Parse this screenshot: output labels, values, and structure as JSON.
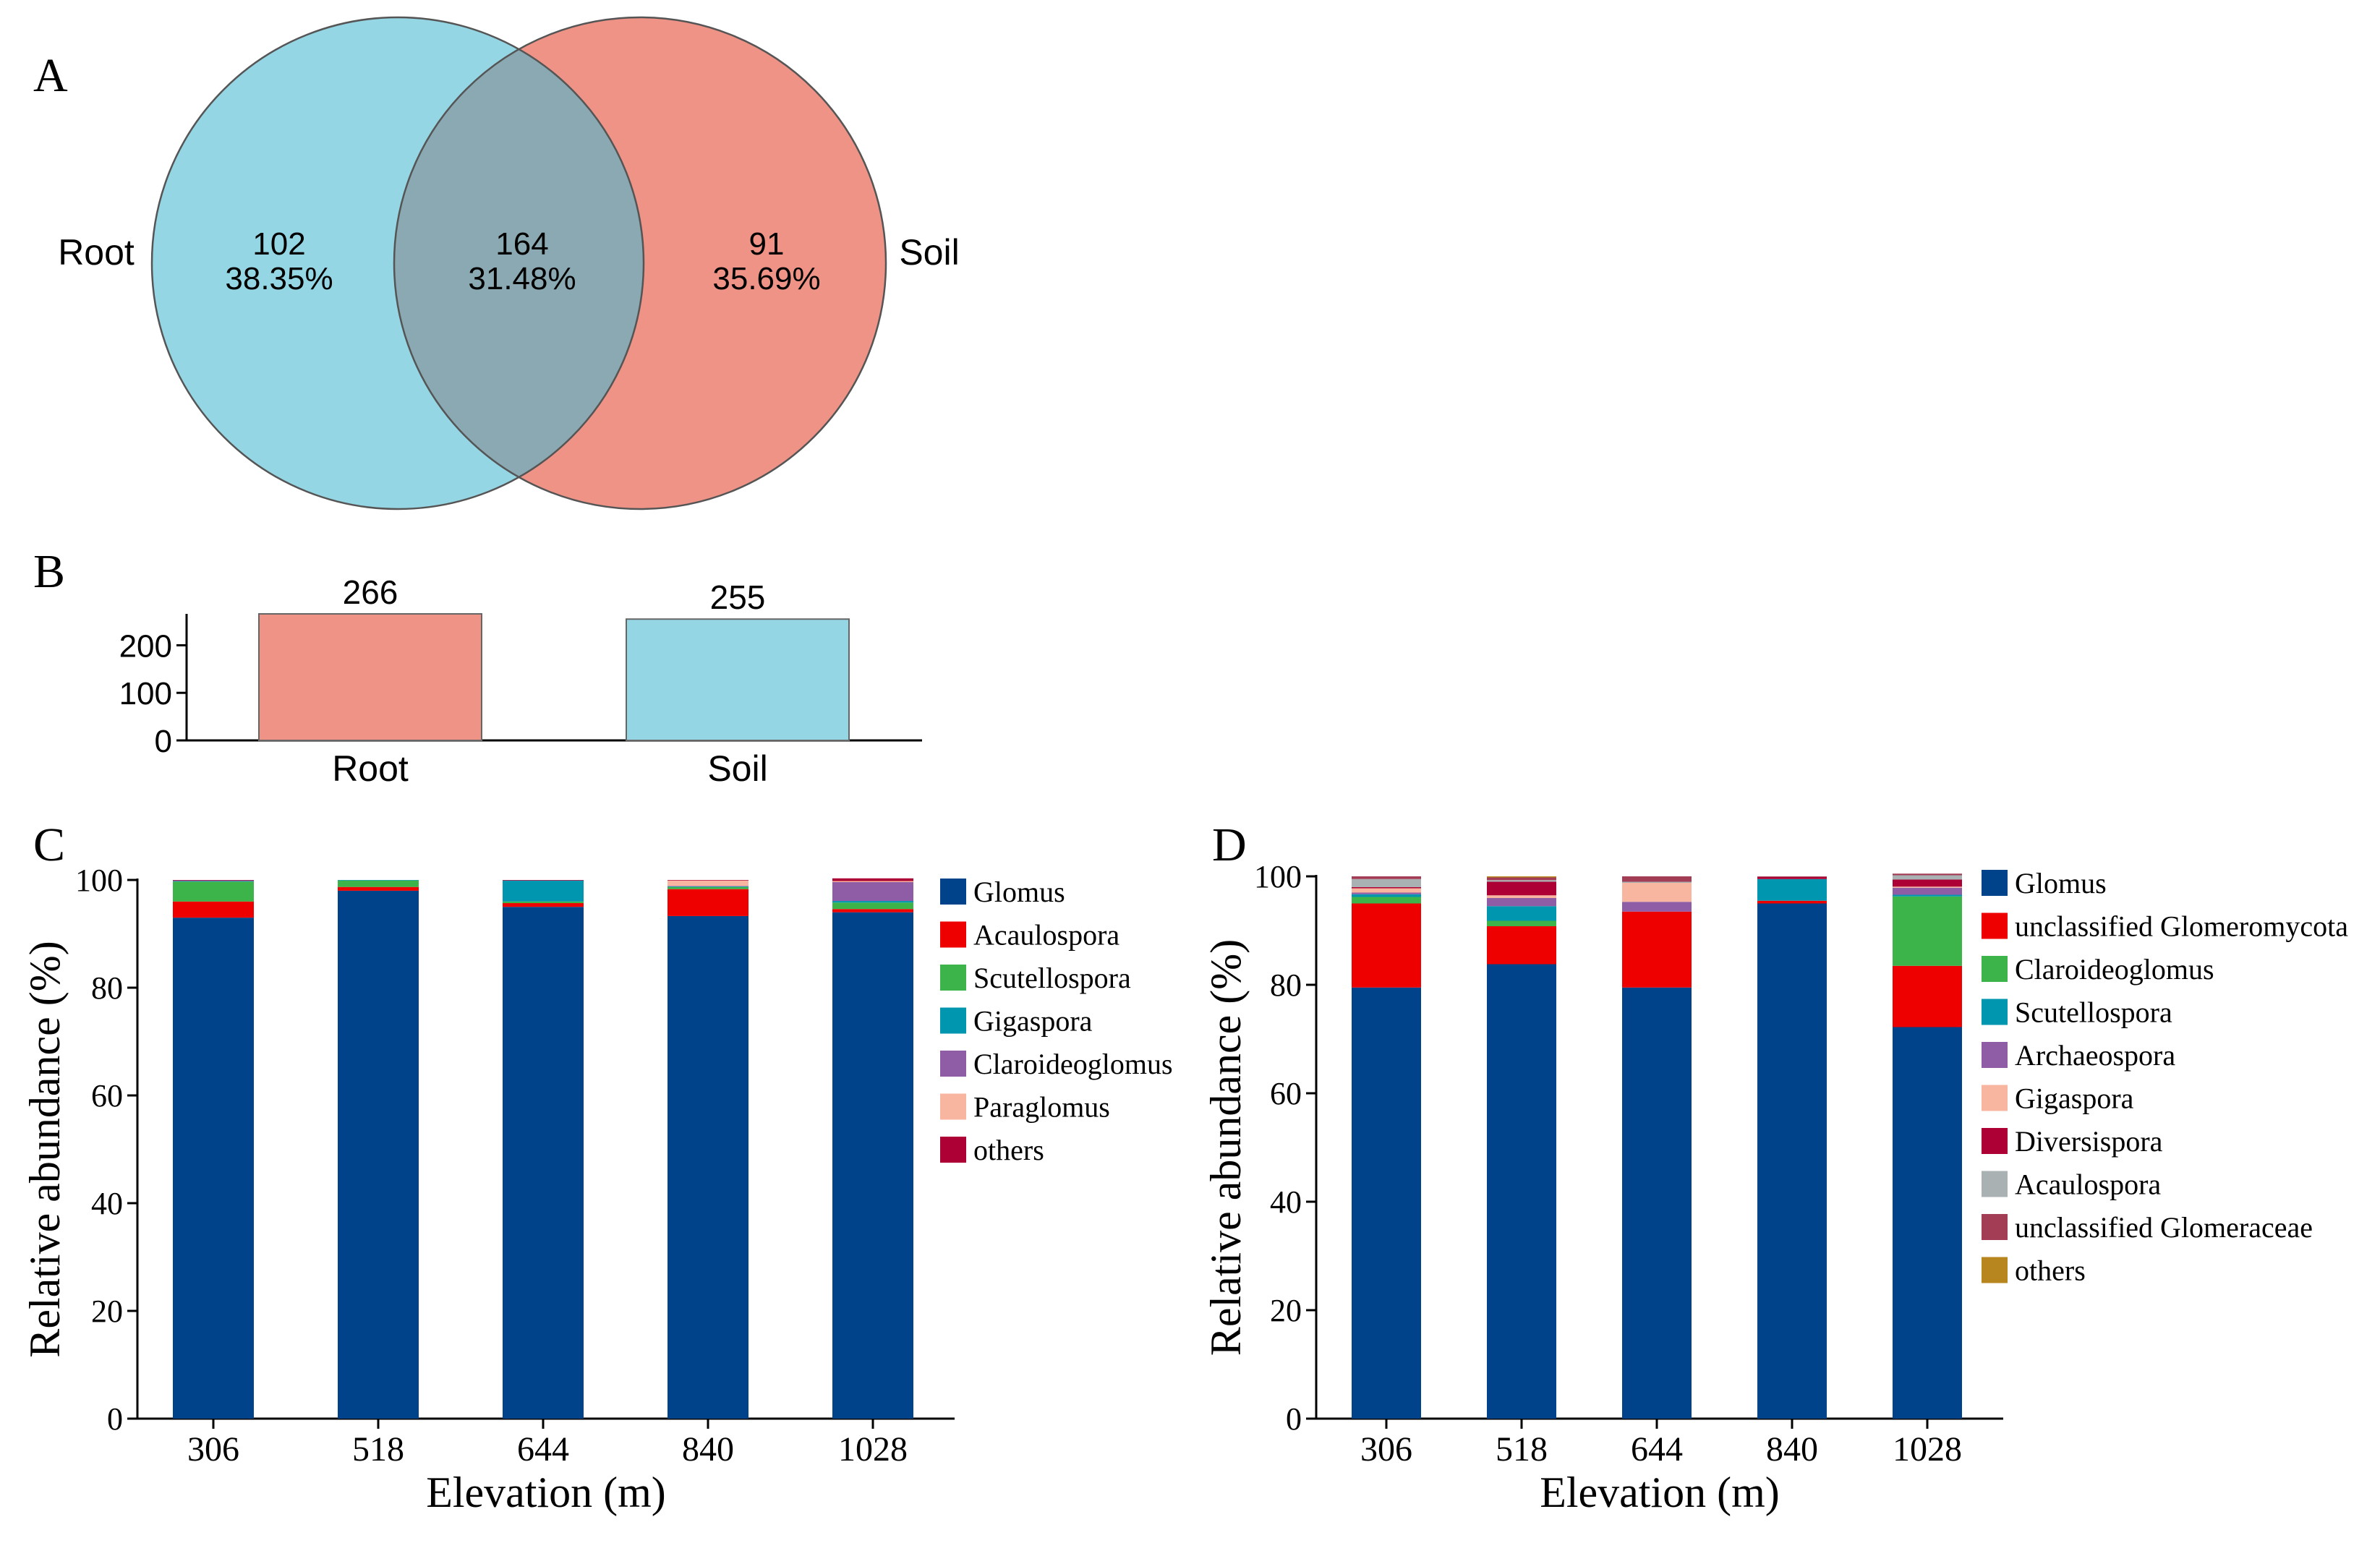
{
  "panels": {
    "A": "A",
    "B": "B",
    "C": "C",
    "D": "D"
  },
  "venn": {
    "left_label": "Root",
    "right_label": "Soil",
    "left_count": "102",
    "left_pct": "38.35%",
    "overlap_count": "164",
    "overlap_pct": "31.48%",
    "right_count": "91",
    "right_pct": "35.69%",
    "colors": {
      "left": "#95d6e5",
      "right": "#ef9387",
      "overlap": "#8aa9b2",
      "stroke": "#555555"
    }
  },
  "chart_data": [
    {
      "id": "B",
      "type": "bar",
      "categories": [
        "Root",
        "Soil"
      ],
      "values": [
        266,
        255
      ],
      "value_labels": [
        "266",
        "255"
      ],
      "colors": [
        "#ef9387",
        "#95d6e5"
      ],
      "ylim": [
        0,
        266
      ],
      "yticks": [
        0,
        100,
        200
      ],
      "ytick_labels": [
        "0",
        "100",
        "200"
      ],
      "xlabel": "",
      "ylabel": ""
    },
    {
      "id": "C",
      "type": "bar",
      "stacked": true,
      "categories": [
        "306",
        "518",
        "644",
        "840",
        "1028"
      ],
      "xlabel": "Elevation (m)",
      "ylabel": "Relative abundance (%)",
      "ylim": [
        0,
        100
      ],
      "yticks": [
        0,
        20,
        40,
        60,
        80,
        100
      ],
      "ytick_labels": [
        "0",
        "20",
        "40",
        "60",
        "80",
        "100"
      ],
      "legend_position": "right",
      "series": [
        {
          "name": "Glomus",
          "color": "#00438a",
          "values": [
            93.0,
            98.0,
            95.0,
            93.3,
            94.0
          ]
        },
        {
          "name": "Acaulospora",
          "color": "#ee0000",
          "values": [
            3.0,
            0.7,
            0.7,
            5.0,
            0.6
          ]
        },
        {
          "name": "Scutellospora",
          "color": "#3cb44a",
          "values": [
            3.7,
            1.2,
            0.3,
            0.4,
            1.2
          ]
        },
        {
          "name": "Gigaspora",
          "color": "#0096b0",
          "values": [
            0.1,
            0.1,
            3.9,
            0.1,
            0.3
          ]
        },
        {
          "name": "Claroideoglomus",
          "color": "#8f5da5",
          "values": [
            0.1,
            0.0,
            0.0,
            0.1,
            3.5
          ]
        },
        {
          "name": "Paraglomus",
          "color": "#f8b59f",
          "values": [
            0.0,
            0.0,
            0.0,
            1.0,
            0.2
          ]
        },
        {
          "name": "others",
          "color": "#ad0034",
          "values": [
            0.1,
            0.0,
            0.1,
            0.1,
            0.5
          ]
        }
      ]
    },
    {
      "id": "D",
      "type": "bar",
      "stacked": true,
      "categories": [
        "306",
        "518",
        "644",
        "840",
        "1028"
      ],
      "xlabel": "Elevation (m)",
      "ylabel": "Relative abundance (%)",
      "ylim": [
        0,
        100
      ],
      "yticks": [
        0,
        20,
        40,
        60,
        80,
        100
      ],
      "ytick_labels": [
        "0",
        "20",
        "40",
        "60",
        "80",
        "100"
      ],
      "legend_position": "right",
      "series": [
        {
          "name": "Glomus",
          "color": "#00438a",
          "values": [
            79.5,
            83.8,
            79.5,
            95.0,
            72.2
          ]
        },
        {
          "name": "unclassified Glomeromycota",
          "color": "#ee0000",
          "values": [
            15.5,
            7.0,
            14.0,
            0.5,
            11.3
          ]
        },
        {
          "name": "Claroideoglomus",
          "color": "#3cb44a",
          "values": [
            1.2,
            1.0,
            0.0,
            0.0,
            12.8
          ]
        },
        {
          "name": "Scutellospora",
          "color": "#0096b0",
          "values": [
            0.5,
            2.7,
            0.0,
            4.0,
            0.3
          ]
        },
        {
          "name": "Archaeospora",
          "color": "#8f5da5",
          "values": [
            0.3,
            1.5,
            1.8,
            0.0,
            1.3
          ]
        },
        {
          "name": "Gigaspora",
          "color": "#f8b59f",
          "values": [
            0.8,
            0.5,
            3.5,
            0.0,
            0.2
          ]
        },
        {
          "name": "Diversispora",
          "color": "#ad0034",
          "values": [
            0.2,
            2.5,
            0.0,
            0.4,
            1.3
          ]
        },
        {
          "name": "Acaulospora",
          "color": "#a9b1b3",
          "values": [
            1.5,
            0.3,
            0.2,
            0.0,
            0.8
          ]
        },
        {
          "name": "unclassified Glomeraceae",
          "color": "#a33d55",
          "values": [
            0.5,
            0.5,
            1.0,
            0.1,
            0.3
          ]
        },
        {
          "name": "others",
          "color": "#b8861f",
          "values": [
            0.0,
            0.2,
            0.0,
            0.0,
            0.0
          ]
        }
      ]
    }
  ]
}
